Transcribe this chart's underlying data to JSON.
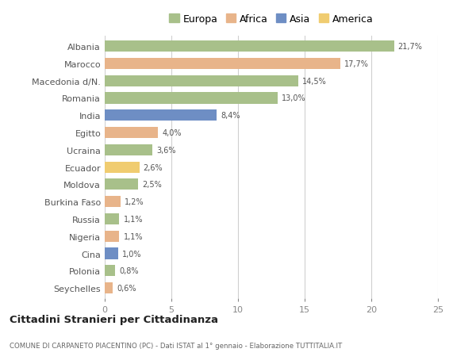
{
  "categories": [
    "Albania",
    "Marocco",
    "Macedonia d/N.",
    "Romania",
    "India",
    "Egitto",
    "Ucraina",
    "Ecuador",
    "Moldova",
    "Burkina Faso",
    "Russia",
    "Nigeria",
    "Cina",
    "Polonia",
    "Seychelles"
  ],
  "values": [
    21.7,
    17.7,
    14.5,
    13.0,
    8.4,
    4.0,
    3.6,
    2.6,
    2.5,
    1.2,
    1.1,
    1.1,
    1.0,
    0.8,
    0.6
  ],
  "labels": [
    "21,7%",
    "17,7%",
    "14,5%",
    "13,0%",
    "8,4%",
    "4,0%",
    "3,6%",
    "2,6%",
    "2,5%",
    "1,2%",
    "1,1%",
    "1,1%",
    "1,0%",
    "0,8%",
    "0,6%"
  ],
  "continents": [
    "Europa",
    "Africa",
    "Europa",
    "Europa",
    "Asia",
    "Africa",
    "Europa",
    "America",
    "Europa",
    "Africa",
    "Europa",
    "Africa",
    "Asia",
    "Europa",
    "Africa"
  ],
  "continent_colors": {
    "Europa": "#a8c08a",
    "Africa": "#e8b48a",
    "Asia": "#6e8ec4",
    "America": "#f0cc70"
  },
  "legend_order": [
    "Europa",
    "Africa",
    "Asia",
    "America"
  ],
  "title": "Cittadini Stranieri per Cittadinanza",
  "subtitle": "COMUNE DI CARPANETO PIACENTINO (PC) - Dati ISTAT al 1° gennaio - Elaborazione TUTTITALIA.IT",
  "xlim": [
    0,
    25
  ],
  "xticks": [
    0,
    5,
    10,
    15,
    20,
    25
  ],
  "background_color": "#ffffff",
  "grid_color": "#d0d0d0",
  "bar_height": 0.65
}
